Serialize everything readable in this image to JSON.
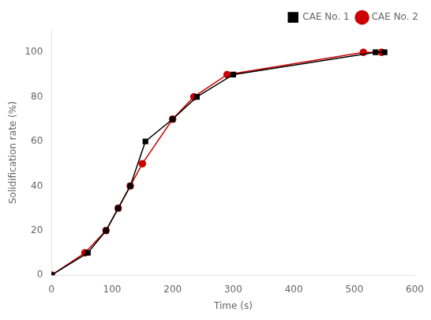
{
  "chart_data": {
    "type": "line",
    "xlabel": "Time (s)",
    "ylabel": "Solidification rate (%)",
    "series": [
      {
        "name": "CAE No. 1",
        "color": "#000000",
        "marker": "square",
        "x": [
          0,
          60,
          90,
          110,
          130,
          155,
          200,
          240,
          300,
          535,
          550
        ],
        "values": [
          0,
          10,
          20,
          30,
          40,
          60,
          70,
          80,
          90,
          100,
          100
        ]
      },
      {
        "name": "CAE No. 2",
        "color": "#cc0000",
        "marker": "circle",
        "x": [
          0,
          55,
          90,
          110,
          130,
          150,
          200,
          235,
          290,
          515,
          545
        ],
        "values": [
          0,
          10,
          20,
          30,
          40,
          50,
          70,
          80,
          90,
          100,
          100
        ]
      }
    ],
    "xlim": [
      0,
      600
    ],
    "ylim": [
      0,
      110
    ],
    "xticks": [
      0,
      100,
      200,
      300,
      400,
      500,
      600
    ],
    "yticks": [
      0,
      20,
      40,
      60,
      80,
      100
    ],
    "grid": false,
    "legend": "upper right"
  }
}
